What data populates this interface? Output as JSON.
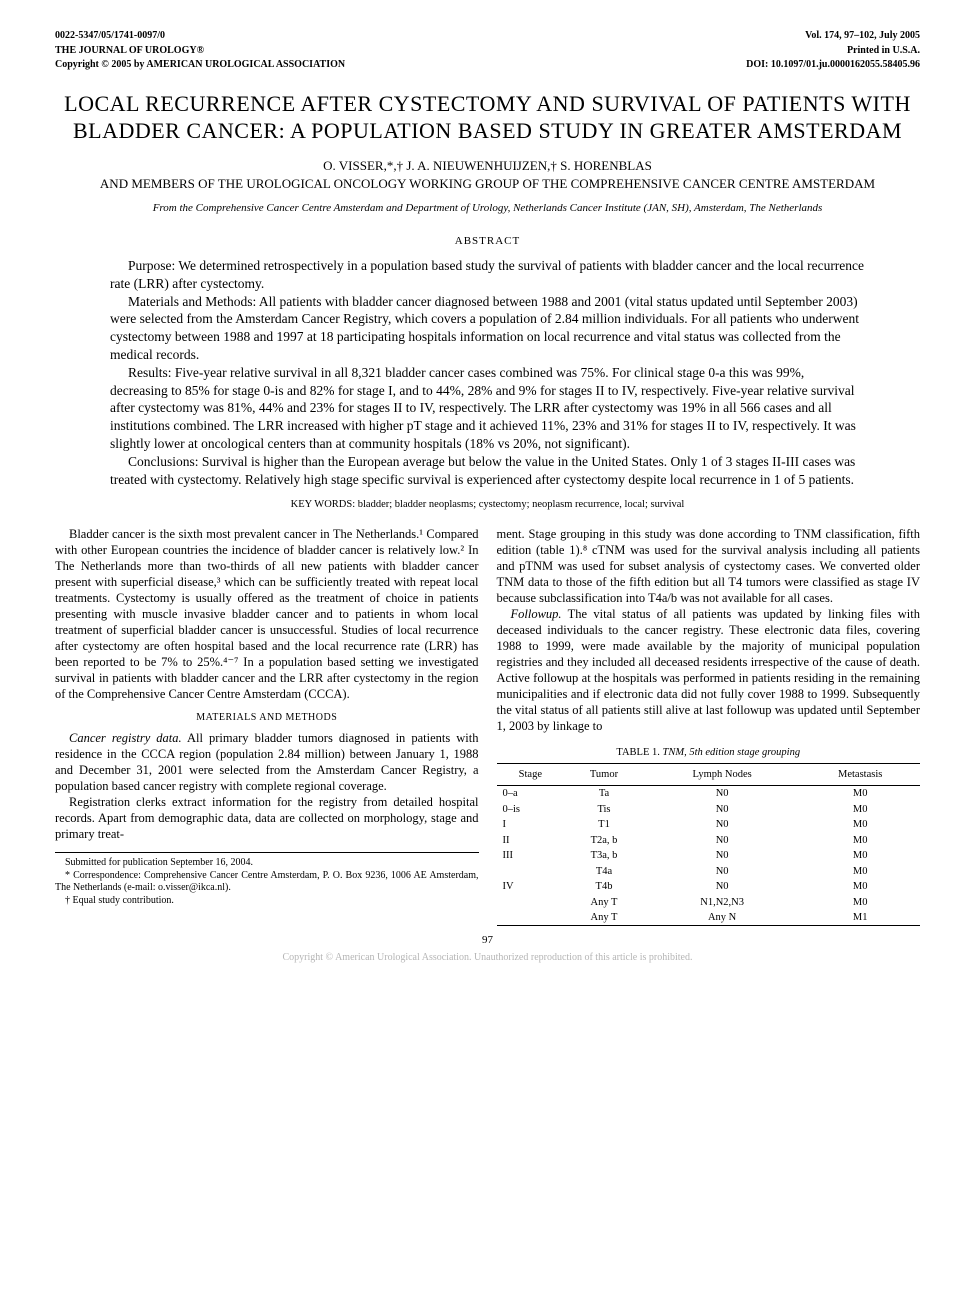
{
  "header": {
    "left1": "0022-5347/05/1741-0097/0",
    "left2": "THE JOURNAL OF UROLOGY®",
    "left3": "Copyright © 2005 by AMERICAN UROLOGICAL ASSOCIATION",
    "right1": "Vol. 174, 97–102, July 2005",
    "right2": "Printed in U.S.A.",
    "right3": "DOI: 10.1097/01.ju.0000162055.58405.96"
  },
  "title": "LOCAL RECURRENCE AFTER CYSTECTOMY AND SURVIVAL OF PATIENTS WITH BLADDER CANCER: A POPULATION BASED STUDY IN GREATER AMSTERDAM",
  "authors_line1": "O. VISSER,*,† J. A. NIEUWENHUIJZEN,† S. HORENBLAS",
  "authors_line2_pre": "AND ",
  "authors_line2_mid": "MEMBERS",
  "authors_line2_of": " OF THE ",
  "authors_line2_grp": "UROLOGICAL ONCOLOGY WORKING GROUP",
  "authors_line2_of2": " OF THE ",
  "authors_line2_end": "COMPREHENSIVE CANCER CENTRE AMSTERDAM",
  "affiliation": "From the Comprehensive Cancer Centre Amsterdam and Department of Urology, Netherlands Cancer Institute (JAN, SH), Amsterdam, The Netherlands",
  "abstract_label": "ABSTRACT",
  "abstract": {
    "p1": "Purpose: We determined retrospectively in a population based study the survival of patients with bladder cancer and the local recurrence rate (LRR) after cystectomy.",
    "p2": "Materials and Methods: All patients with bladder cancer diagnosed between 1988 and 2001 (vital status updated until September 2003) were selected from the Amsterdam Cancer Registry, which covers a population of 2.84 million individuals. For all patients who underwent cystectomy between 1988 and 1997 at 18 participating hospitals information on local recurrence and vital status was collected from the medical records.",
    "p3": "Results: Five-year relative survival in all 8,321 bladder cancer cases combined was 75%. For clinical stage 0-a this was 99%, decreasing to 85% for stage 0-is and 82% for stage I, and to 44%, 28% and 9% for stages II to IV, respectively. Five-year relative survival after cystectomy was 81%, 44% and 23% for stages II to IV, respectively. The LRR after cystectomy was 19% in all 566 cases and all institutions combined. The LRR increased with higher pT stage and it achieved 11%, 23% and 31% for stages II to IV, respectively. It was slightly lower at oncological centers than at community hospitals (18% vs 20%, not significant).",
    "p4": "Conclusions: Survival is higher than the European average but below the value in the United States. Only 1 of 3 stages II-III cases was treated with cystectomy. Relatively high stage specific survival is experienced after cystectomy despite local recurrence in 1 of 5 patients."
  },
  "keywords_label": "KEY WORDS:",
  "keywords": " bladder; bladder neoplasms; cystectomy; neoplasm recurrence, local; survival",
  "body": {
    "intro": "Bladder cancer is the sixth most prevalent cancer in The Netherlands.¹ Compared with other European countries the incidence of bladder cancer is relatively low.² In The Netherlands more than two-thirds of all new patients with bladder cancer present with superficial disease,³ which can be sufficiently treated with repeat local treatments. Cystectomy is usually offered as the treatment of choice in patients presenting with muscle invasive bladder cancer and to patients in whom local treatment of superficial bladder cancer is unsuccessful. Studies of local recurrence after cystectomy are often hospital based and the local recurrence rate (LRR) has been reported to be 7% to 25%.⁴⁻⁷ In a population based setting we investigated survival in patients with bladder cancer and the LRR after cystectomy in the region of the Comprehensive Cancer Centre Amsterdam (CCCA).",
    "mm_head": "MATERIALS AND METHODS",
    "mm_runin": "Cancer registry data.",
    "mm_p1": " All primary bladder tumors diagnosed in patients with residence in the CCCA region (population 2.84 million) between January 1, 1988 and December 31, 2001 were selected from the Amsterdam Cancer Registry, a population based cancer registry with complete regional coverage.",
    "mm_p2": "Registration clerks extract information for the registry from detailed hospital records. Apart from demographic data, data are collected on morphology, stage and primary treat-",
    "col2_p1": "ment. Stage grouping in this study was done according to TNM classification, fifth edition (table 1).⁸ cTNM was used for the survival analysis including all patients and pTNM was used for subset analysis of cystectomy cases. We converted older TNM data to those of the fifth edition but all T4 tumors were classified as stage IV because subclassification into T4a/b was not available for all cases.",
    "fu_runin": "Followup.",
    "fu_p1": " The vital status of all patients was updated by linking files with deceased individuals to the cancer registry. These electronic data files, covering 1988 to 1999, were made available by the majority of municipal population registries and they included all deceased residents irrespective of the cause of death. Active followup at the hospitals was performed in patients residing in the remaining municipalities and if electronic data did not fully cover 1988 to 1999. Subsequently the vital status of all patients still alive at last followup was updated until September 1, 2003 by linkage to"
  },
  "footnotes": {
    "f1": "Submitted for publication September 16, 2004.",
    "f2": "* Correspondence: Comprehensive Cancer Centre Amsterdam, P. O. Box 9236, 1006 AE Amsterdam, The Netherlands (e-mail: o.visser@ikca.nl).",
    "f3": "† Equal study contribution."
  },
  "table1": {
    "caption_label": "TABLE 1.",
    "caption_desc": " TNM, 5th edition stage grouping",
    "columns": [
      "Stage",
      "Tumor",
      "Lymph Nodes",
      "Metastasis"
    ],
    "rows": [
      [
        "0–a",
        "Ta",
        "N0",
        "M0"
      ],
      [
        "0–is",
        "Tis",
        "N0",
        "M0"
      ],
      [
        "I",
        "T1",
        "N0",
        "M0"
      ],
      [
        "II",
        "T2a, b",
        "N0",
        "M0"
      ],
      [
        "III",
        "T3a, b",
        "N0",
        "M0"
      ],
      [
        "",
        "T4a",
        "N0",
        "M0"
      ],
      [
        "IV",
        "T4b",
        "N0",
        "M0"
      ],
      [
        "",
        "Any T",
        "N1,N2,N3",
        "M0"
      ],
      [
        "",
        "Any T",
        "Any N",
        "M1"
      ]
    ]
  },
  "pagenum": "97",
  "copyright_foot": "Copyright © American Urological Association. Unauthorized reproduction of this article is prohibited."
}
